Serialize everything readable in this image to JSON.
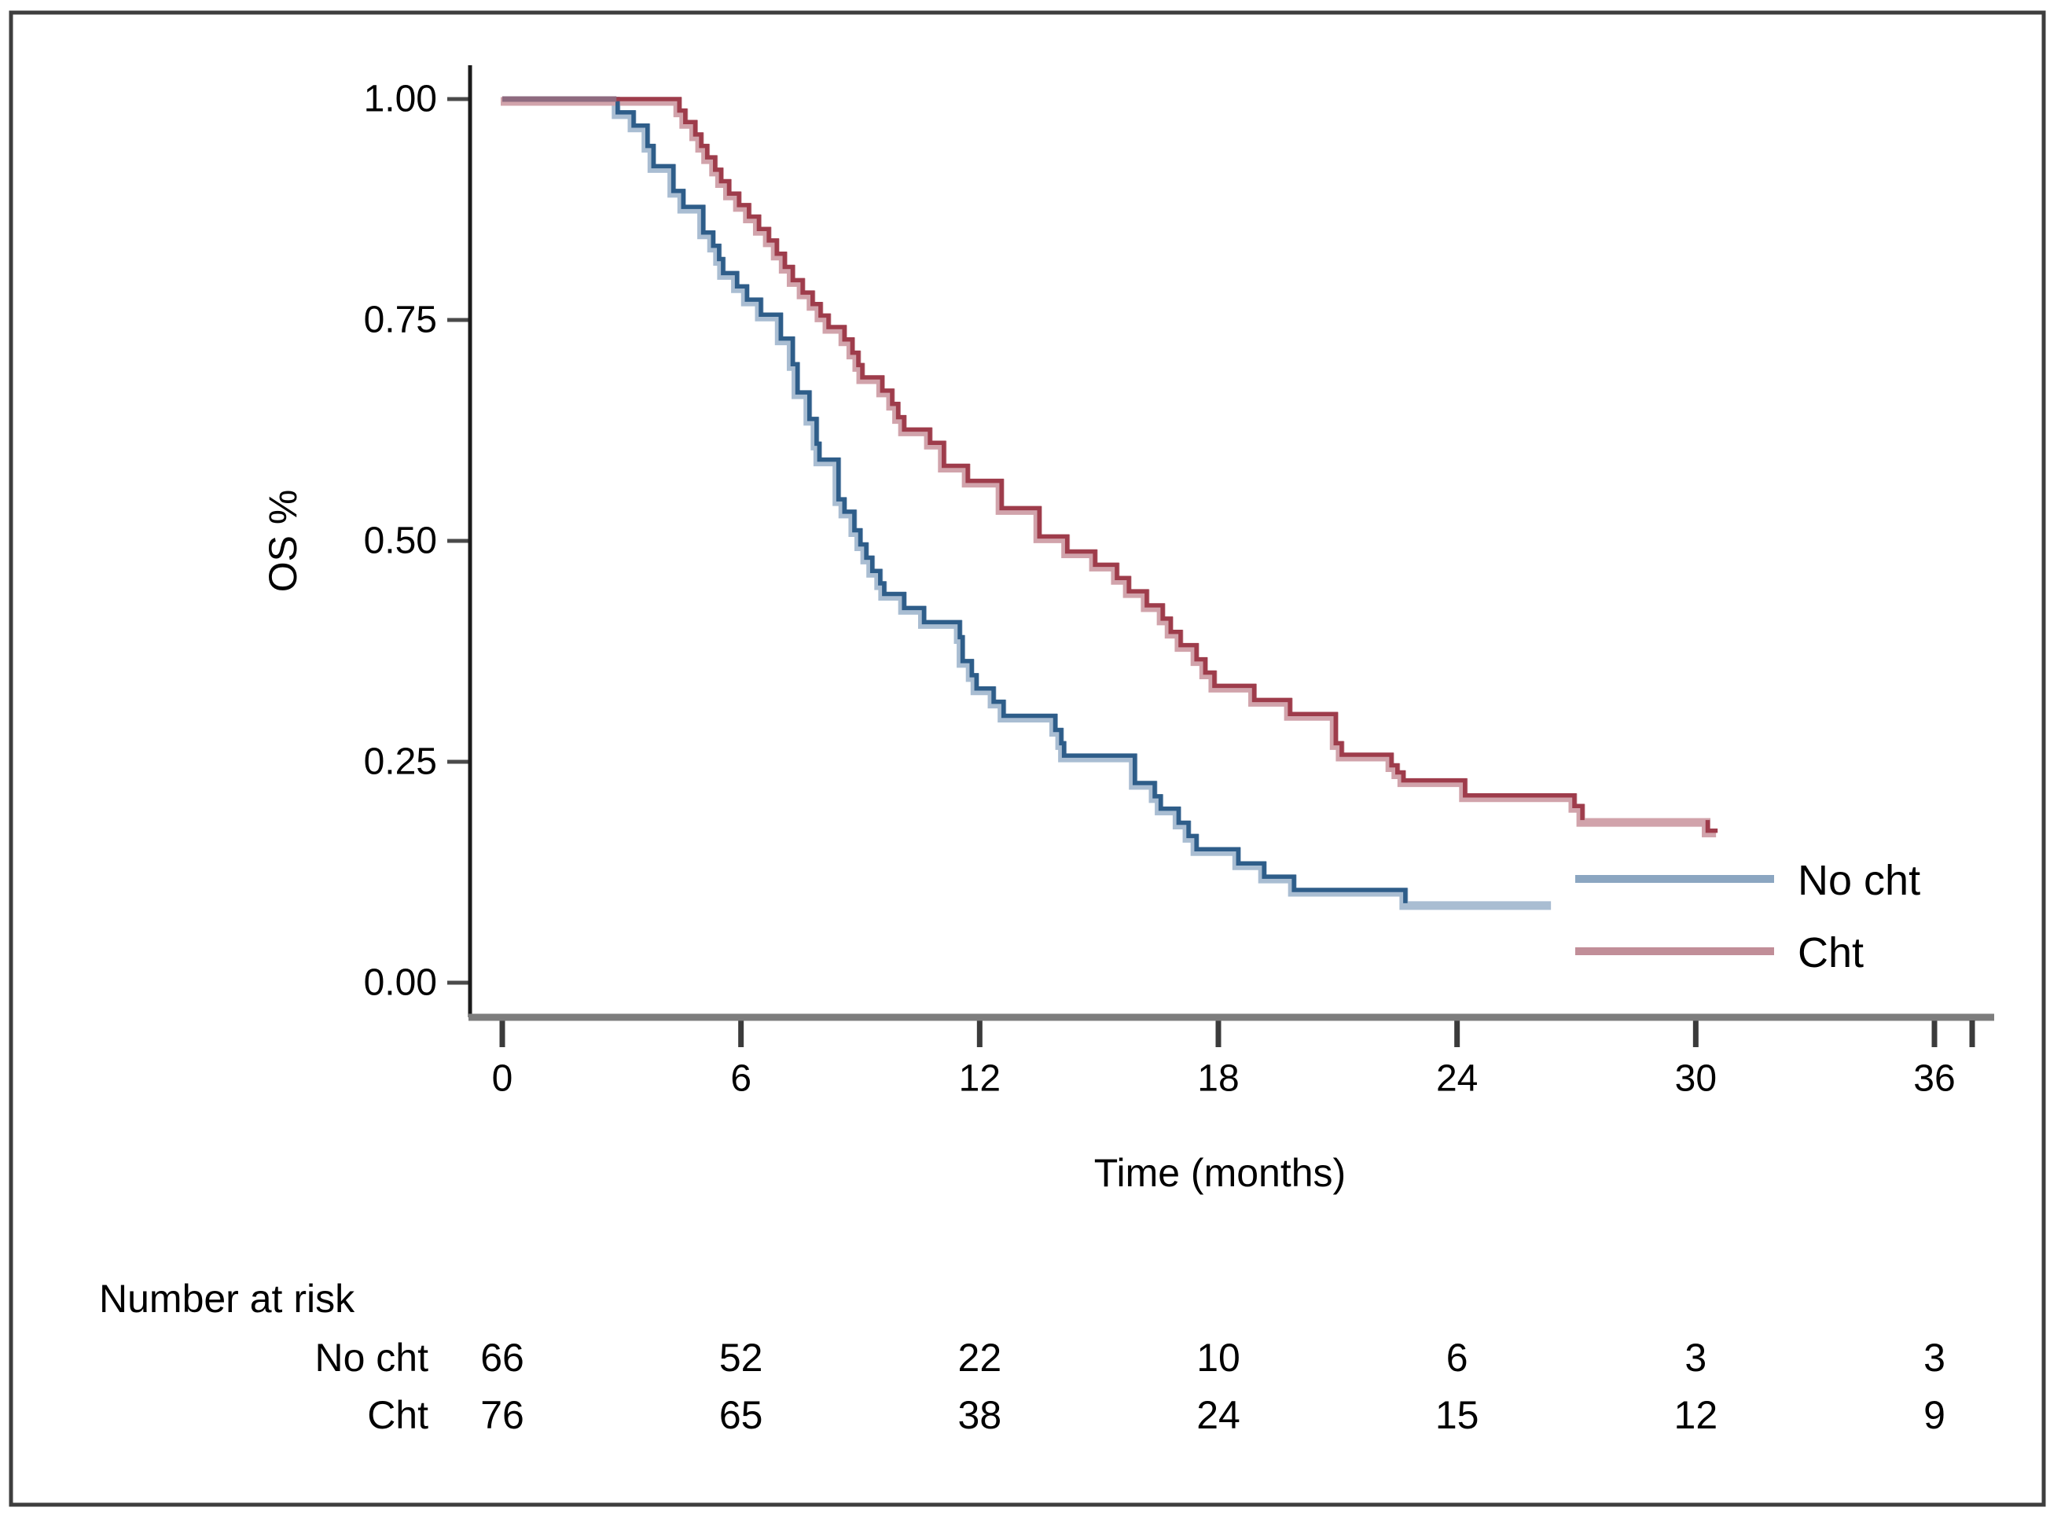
{
  "figure": {
    "border_color": "#3e3e3e",
    "background_color": "#ffffff",
    "x_axis_color": "#7d7d7d",
    "y_axis_color": "#1a1a1a",
    "tick_color": "#3b3b3b"
  },
  "chart_data": {
    "type": "line",
    "subtype": "kaplan-meier-step",
    "title": "",
    "xlabel": "Time (months)",
    "ylabel": "OS %",
    "xlim": [
      0,
      37.5
    ],
    "ylim": [
      0.0,
      1.0
    ],
    "grid": "off",
    "legend_position": "right-inside-bottom",
    "x_ticks": [
      0,
      6,
      12,
      18,
      24,
      30,
      36
    ],
    "y_ticks": [
      {
        "label": "1.00",
        "v": 1.0
      },
      {
        "label": "0.75",
        "v": 0.75
      },
      {
        "label": "0.50",
        "v": 0.5
      },
      {
        "label": "0.25",
        "v": 0.25
      },
      {
        "label": "0.00",
        "v": 0.0
      }
    ],
    "legend": [
      "No cht",
      "Cht"
    ],
    "overlap_segment": {
      "color": "#8e6a7f",
      "from_t": 0.0,
      "to_t": 2.87,
      "s": 1.0
    },
    "series": [
      {
        "name": "No cht",
        "color": "#2e5d89",
        "halo_color": "#a9bdd2",
        "legend_color": "#8ba6c1",
        "end_t": 26.4,
        "core_end_t": 22.7,
        "dark_segments": [],
        "steps": [
          [
            0.0,
            1.0
          ],
          [
            2.9,
            0.985
          ],
          [
            3.3,
            0.97
          ],
          [
            3.65,
            0.947
          ],
          [
            3.8,
            0.924
          ],
          [
            4.3,
            0.896
          ],
          [
            4.55,
            0.878
          ],
          [
            5.05,
            0.849
          ],
          [
            5.3,
            0.834
          ],
          [
            5.45,
            0.819
          ],
          [
            5.55,
            0.803
          ],
          [
            5.9,
            0.788
          ],
          [
            6.15,
            0.773
          ],
          [
            6.5,
            0.756
          ],
          [
            7.0,
            0.729
          ],
          [
            7.3,
            0.7
          ],
          [
            7.42,
            0.668
          ],
          [
            7.72,
            0.638
          ],
          [
            7.9,
            0.61
          ],
          [
            7.97,
            0.592
          ],
          [
            8.45,
            0.547
          ],
          [
            8.6,
            0.533
          ],
          [
            8.85,
            0.512
          ],
          [
            9.0,
            0.496
          ],
          [
            9.15,
            0.481
          ],
          [
            9.3,
            0.466
          ],
          [
            9.5,
            0.452
          ],
          [
            9.6,
            0.44
          ],
          [
            10.1,
            0.424
          ],
          [
            10.6,
            0.408
          ],
          [
            11.5,
            0.391
          ],
          [
            11.57,
            0.364
          ],
          [
            11.8,
            0.348
          ],
          [
            11.92,
            0.333
          ],
          [
            12.35,
            0.318
          ],
          [
            12.6,
            0.302
          ],
          [
            13.9,
            0.286
          ],
          [
            14.05,
            0.271
          ],
          [
            14.12,
            0.257
          ],
          [
            15.9,
            0.226
          ],
          [
            16.4,
            0.211
          ],
          [
            16.55,
            0.197
          ],
          [
            17.0,
            0.181
          ],
          [
            17.25,
            0.166
          ],
          [
            17.45,
            0.151
          ],
          [
            18.5,
            0.135
          ],
          [
            19.15,
            0.12
          ],
          [
            19.9,
            0.105
          ],
          [
            22.7,
            0.09
          ]
        ]
      },
      {
        "name": "Cht",
        "color": "#9e3c4b",
        "halo_color": "#d1a3ab",
        "legend_color": "#c18e98",
        "end_t": 30.55,
        "core_end_t": 27.15,
        "dark_segments": [
          [
            30.3,
            0.184,
            30.55,
            0.172
          ]
        ],
        "steps": [
          [
            0.0,
            1.0
          ],
          [
            4.45,
            0.987
          ],
          [
            4.6,
            0.974
          ],
          [
            4.85,
            0.96
          ],
          [
            5.0,
            0.947
          ],
          [
            5.15,
            0.934
          ],
          [
            5.35,
            0.92
          ],
          [
            5.5,
            0.907
          ],
          [
            5.7,
            0.893
          ],
          [
            5.95,
            0.88
          ],
          [
            6.2,
            0.867
          ],
          [
            6.45,
            0.853
          ],
          [
            6.7,
            0.84
          ],
          [
            6.9,
            0.825
          ],
          [
            7.1,
            0.81
          ],
          [
            7.3,
            0.795
          ],
          [
            7.55,
            0.781
          ],
          [
            7.8,
            0.768
          ],
          [
            8.0,
            0.755
          ],
          [
            8.2,
            0.742
          ],
          [
            8.6,
            0.728
          ],
          [
            8.8,
            0.713
          ],
          [
            8.95,
            0.699
          ],
          [
            9.05,
            0.685
          ],
          [
            9.55,
            0.67
          ],
          [
            9.8,
            0.655
          ],
          [
            9.95,
            0.64
          ],
          [
            10.1,
            0.626
          ],
          [
            10.75,
            0.611
          ],
          [
            11.1,
            0.585
          ],
          [
            11.7,
            0.568
          ],
          [
            12.55,
            0.537
          ],
          [
            13.5,
            0.505
          ],
          [
            14.2,
            0.488
          ],
          [
            14.9,
            0.473
          ],
          [
            15.45,
            0.458
          ],
          [
            15.75,
            0.443
          ],
          [
            16.2,
            0.427
          ],
          [
            16.6,
            0.412
          ],
          [
            16.8,
            0.397
          ],
          [
            17.05,
            0.382
          ],
          [
            17.45,
            0.366
          ],
          [
            17.67,
            0.351
          ],
          [
            17.9,
            0.336
          ],
          [
            18.9,
            0.32
          ],
          [
            19.8,
            0.304
          ],
          [
            20.95,
            0.271
          ],
          [
            21.1,
            0.258
          ],
          [
            22.35,
            0.246
          ],
          [
            22.5,
            0.238
          ],
          [
            22.65,
            0.229
          ],
          [
            24.2,
            0.212
          ],
          [
            26.95,
            0.2
          ],
          [
            27.15,
            0.184
          ],
          [
            30.3,
            0.172
          ]
        ]
      }
    ],
    "number_at_risk": {
      "title": "Number at risk",
      "rows": [
        {
          "label": "No cht",
          "values": [
            66,
            52,
            22,
            10,
            6,
            3,
            3
          ]
        },
        {
          "label": "Cht",
          "values": [
            76,
            65,
            38,
            24,
            15,
            12,
            9
          ]
        }
      ]
    }
  }
}
